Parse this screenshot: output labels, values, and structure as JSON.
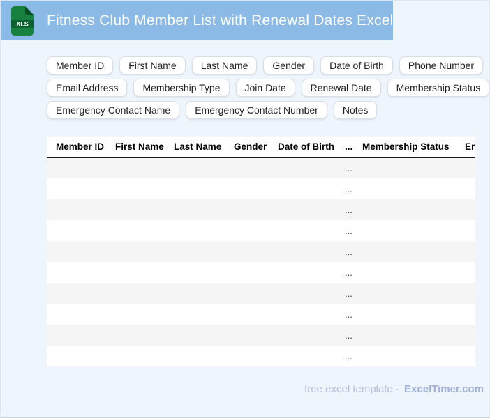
{
  "header": {
    "title": "Fitness Club Member List with Renewal Dates Excel",
    "icon_label": "XLS"
  },
  "chips": {
    "rows": [
      [
        "Member ID",
        "First Name",
        "Last Name",
        "Gender",
        "Date of Birth",
        "Phone Number"
      ],
      [
        "Email Address",
        "Membership Type",
        "Join Date",
        "Renewal Date",
        "Membership Status"
      ],
      [
        "Emergency Contact Name",
        "Emergency Contact Number",
        "Notes"
      ]
    ]
  },
  "table": {
    "columns": [
      "Member ID",
      "First Name",
      "Last Name",
      "Gender",
      "Date of Birth",
      "...",
      "Membership Status",
      "Emergency Contact Name"
    ],
    "ellipsis_col_index": 5,
    "row_count": 10,
    "row_placeholder": "..."
  },
  "footer": {
    "text": "free excel template -",
    "brand": "ExcelTimer.com"
  },
  "colors": {
    "page_bg": "#eff5fd",
    "page_border": "#dee5f0",
    "header_bg": "#8cbae6",
    "header_text": "#ffffff",
    "icon_green": "#17813f",
    "icon_band_green": "#0c6130",
    "icon_fold_green": "#0a4f27",
    "chip_bg": "#ffffff",
    "chip_border": "#d9dde5",
    "chip_text": "#202124",
    "table_header_text": "#000000",
    "table_header_border": "#1a1a1a",
    "row_stripe": "#f5f5f5",
    "row_text": "#3a3a3a",
    "footer_text": "#b2bbdb",
    "footer_brand": "#a0b0d9"
  }
}
